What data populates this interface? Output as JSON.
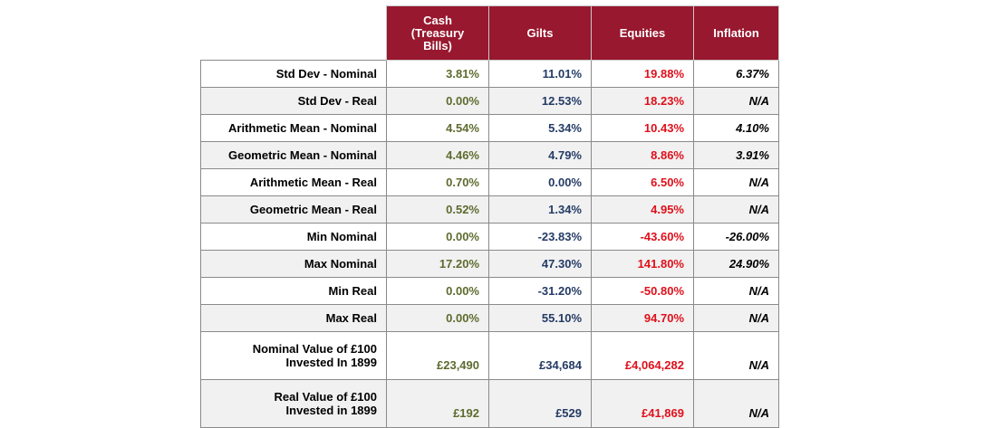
{
  "columns": {
    "cash": "Cash\n(Treasury\nBills)",
    "gilts": "Gilts",
    "equities": "Equities",
    "inflation": "Inflation"
  },
  "colors": {
    "header_bg": "#98182f",
    "cash": "#5e6b2e",
    "gilts": "#243b66",
    "equities": "#e0101b",
    "inflation": "#000000"
  },
  "rows": [
    {
      "label": "Std Dev - Nominal",
      "cash": "3.81%",
      "gilts": "11.01%",
      "equities": "19.88%",
      "inflation": "6.37%"
    },
    {
      "label": "Std Dev - Real",
      "cash": "0.00%",
      "gilts": "12.53%",
      "equities": "18.23%",
      "inflation": "N/A"
    },
    {
      "label": "Arithmetic Mean - Nominal",
      "cash": "4.54%",
      "gilts": "5.34%",
      "equities": "10.43%",
      "inflation": "4.10%"
    },
    {
      "label": "Geometric Mean - Nominal",
      "cash": "4.46%",
      "gilts": "4.79%",
      "equities": "8.86%",
      "inflation": "3.91%"
    },
    {
      "label": "Arithmetic Mean - Real",
      "cash": "0.70%",
      "gilts": "0.00%",
      "equities": "6.50%",
      "inflation": "N/A"
    },
    {
      "label": "Geometric Mean - Real",
      "cash": "0.52%",
      "gilts": "1.34%",
      "equities": "4.95%",
      "inflation": "N/A"
    },
    {
      "label": "Min Nominal",
      "cash": "0.00%",
      "gilts": "-23.83%",
      "equities": "-43.60%",
      "inflation": "-26.00%"
    },
    {
      "label": "Max Nominal",
      "cash": "17.20%",
      "gilts": "47.30%",
      "equities": "141.80%",
      "inflation": "24.90%"
    },
    {
      "label": "Min Real",
      "cash": "0.00%",
      "gilts": "-31.20%",
      "equities": "-50.80%",
      "inflation": "N/A"
    },
    {
      "label": "Max Real",
      "cash": "0.00%",
      "gilts": "55.10%",
      "equities": "94.70%",
      "inflation": "N/A"
    },
    {
      "label": "Nominal Value of £100\nInvested In 1899",
      "cash": "£23,490",
      "gilts": "£34,684",
      "equities": "£4,064,282",
      "inflation": "N/A"
    },
    {
      "label": "Real Value of £100\nInvested in 1899",
      "cash": "£192",
      "gilts": "£529",
      "equities": "£41,869",
      "inflation": "N/A"
    }
  ]
}
